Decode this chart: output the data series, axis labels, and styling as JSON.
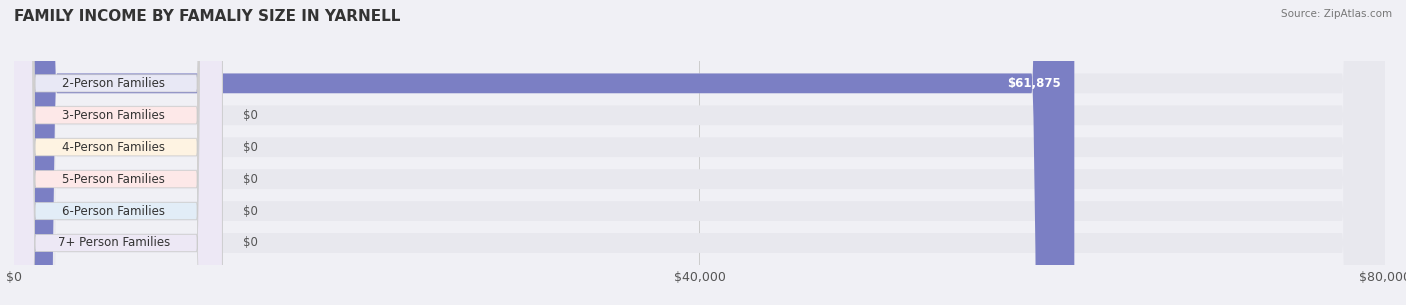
{
  "title": "FAMILY INCOME BY FAMALIY SIZE IN YARNELL",
  "source": "Source: ZipAtlas.com",
  "categories": [
    "2-Person Families",
    "3-Person Families",
    "4-Person Families",
    "5-Person Families",
    "6-Person Families",
    "7+ Person Families"
  ],
  "values": [
    61875,
    0,
    0,
    0,
    0,
    0
  ],
  "bar_colors": [
    "#7b7fc4",
    "#f08080",
    "#f5c97a",
    "#f4a0a0",
    "#a8c4e0",
    "#c9b8d8"
  ],
  "label_bg_colors": [
    "#e8e8f5",
    "#fde8e8",
    "#fef3e2",
    "#fde8e8",
    "#e2edf7",
    "#ede8f5"
  ],
  "value_labels": [
    "$61,875",
    "$0",
    "$0",
    "$0",
    "$0",
    "$0"
  ],
  "xlim": [
    0,
    80000
  ],
  "xticks": [
    0,
    40000,
    80000
  ],
  "xticklabels": [
    "$0",
    "$40,000",
    "$80,000"
  ],
  "background_color": "#f0f0f5",
  "bar_bg_color": "#e8e8ee",
  "title_fontsize": 11,
  "tick_fontsize": 9,
  "label_fontsize": 8.5
}
